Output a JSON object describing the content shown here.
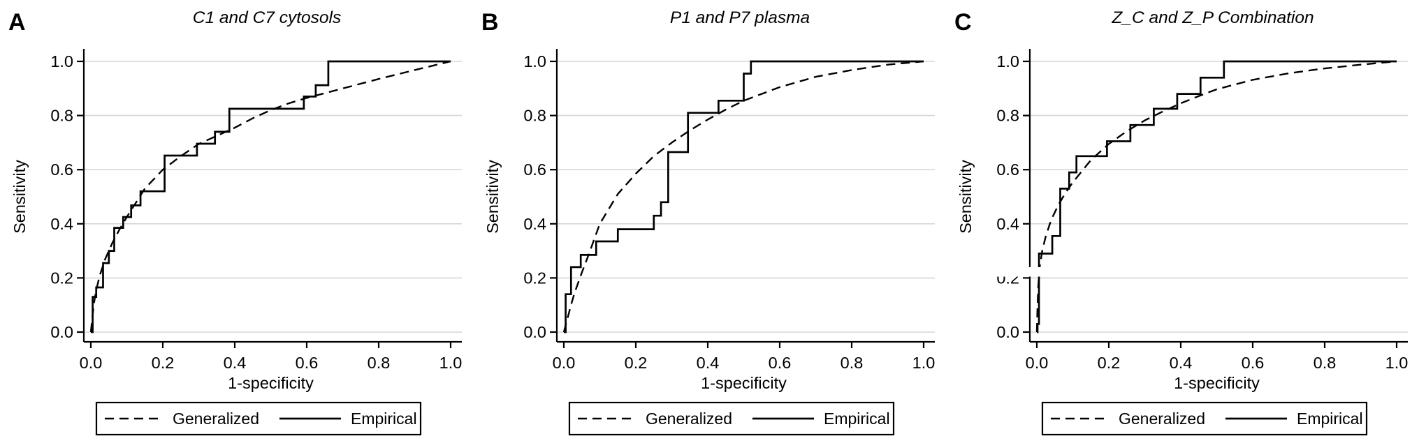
{
  "figure": {
    "background": "#ffffff",
    "line_color": "#000000",
    "grid_color": "#d6d6d6",
    "legend": {
      "entries": [
        {
          "label": "Generalized",
          "style": "dashed"
        },
        {
          "label": "Empirical",
          "style": "solid"
        }
      ],
      "position": "bottom"
    }
  },
  "chart_data": [
    {
      "type": "line",
      "panel_label": "A",
      "title": "C1 and C7 cytosols",
      "xlabel": "1-specificity",
      "ylabel": "Sensitivity",
      "xlim": [
        0,
        1
      ],
      "ylim": [
        0,
        1
      ],
      "xticks": [
        "0.0",
        "0.2",
        "0.4",
        "0.6",
        "0.8",
        "1.0"
      ],
      "yticks": [
        "0.0",
        "0.2",
        "0.4",
        "0.6",
        "0.8",
        "1.0"
      ],
      "grid": "horizontal",
      "series": [
        {
          "name": "Generalized",
          "style": "dashed",
          "x": [
            0,
            0.004,
            0.008,
            0.015,
            0.025,
            0.04,
            0.06,
            0.08,
            0.1,
            0.15,
            0.2,
            0.25,
            0.3,
            0.35,
            0.4,
            0.45,
            0.5,
            0.55,
            0.6,
            0.7,
            0.8,
            0.9,
            1.0
          ],
          "y": [
            0,
            0.05,
            0.1,
            0.155,
            0.21,
            0.27,
            0.33,
            0.38,
            0.425,
            0.53,
            0.6,
            0.65,
            0.695,
            0.725,
            0.755,
            0.79,
            0.82,
            0.845,
            0.865,
            0.9,
            0.935,
            0.968,
            1.0
          ]
        },
        {
          "name": "Empirical",
          "style": "solid-step",
          "steps": [
            [
              0.005,
              0.13
            ],
            [
              0.015,
              0.165
            ],
            [
              0.034,
              0.255
            ],
            [
              0.05,
              0.3
            ],
            [
              0.065,
              0.385
            ],
            [
              0.09,
              0.425
            ],
            [
              0.112,
              0.468
            ],
            [
              0.138,
              0.52
            ],
            [
              0.205,
              0.652
            ],
            [
              0.295,
              0.696
            ],
            [
              0.345,
              0.74
            ],
            [
              0.385,
              0.825
            ],
            [
              0.592,
              0.87
            ],
            [
              0.625,
              0.912
            ],
            [
              0.66,
              1.0
            ]
          ]
        }
      ]
    },
    {
      "type": "line",
      "panel_label": "B",
      "title": "P1 and P7 plasma",
      "xlabel": "1-specificity",
      "ylabel": "Sensitivity",
      "xlim": [
        0,
        1
      ],
      "ylim": [
        0,
        1
      ],
      "xticks": [
        "0.0",
        "0.2",
        "0.4",
        "0.6",
        "0.8",
        "1.0"
      ],
      "yticks": [
        "0.0",
        "0.2",
        "0.4",
        "0.6",
        "0.8",
        "1.0"
      ],
      "grid": "horizontal",
      "series": [
        {
          "name": "Generalized",
          "style": "dashed",
          "x": [
            0,
            0.005,
            0.01,
            0.02,
            0.03,
            0.05,
            0.07,
            0.1,
            0.15,
            0.2,
            0.25,
            0.3,
            0.35,
            0.4,
            0.45,
            0.5,
            0.6,
            0.7,
            0.8,
            0.9,
            1.0
          ],
          "y": [
            0,
            0.025,
            0.05,
            0.1,
            0.145,
            0.22,
            0.29,
            0.4,
            0.51,
            0.585,
            0.65,
            0.7,
            0.745,
            0.785,
            0.822,
            0.855,
            0.905,
            0.943,
            0.968,
            0.988,
            1.0
          ]
        },
        {
          "name": "Empirical",
          "style": "solid-step",
          "steps": [
            [
              0.005,
              0.14
            ],
            [
              0.02,
              0.24
            ],
            [
              0.047,
              0.285
            ],
            [
              0.09,
              0.335
            ],
            [
              0.15,
              0.38
            ],
            [
              0.25,
              0.43
            ],
            [
              0.27,
              0.48
            ],
            [
              0.29,
              0.665
            ],
            [
              0.345,
              0.81
            ],
            [
              0.43,
              0.855
            ],
            [
              0.5,
              0.955
            ],
            [
              0.52,
              1.0
            ]
          ]
        }
      ]
    },
    {
      "type": "line",
      "panel_label": "C",
      "title": "Z_C and Z_P Combination",
      "xlabel": "1-specificity",
      "ylabel": "Sensitivity",
      "xlim": [
        0,
        1
      ],
      "ylim": [
        0,
        1
      ],
      "xticks": [
        "0.0",
        "0.2",
        "0.4",
        "0.6",
        "0.8",
        "1.0"
      ],
      "yticks": [
        "0.0",
        "0.2",
        "0.4",
        "0.6",
        "0.8",
        "1.0"
      ],
      "grid": "horizontal",
      "break_band": {
        "y_from": 0.205,
        "y_to": 0.24
      },
      "series": [
        {
          "name": "Generalized",
          "style": "dashed",
          "x": [
            0,
            0.002,
            0.004,
            0.008,
            0.015,
            0.025,
            0.04,
            0.06,
            0.08,
            0.1,
            0.15,
            0.2,
            0.25,
            0.3,
            0.35,
            0.4,
            0.45,
            0.5,
            0.6,
            0.7,
            0.8,
            0.9,
            1.0
          ],
          "y": [
            0,
            0.1,
            0.17,
            0.24,
            0.3,
            0.355,
            0.415,
            0.47,
            0.515,
            0.553,
            0.635,
            0.695,
            0.742,
            0.782,
            0.815,
            0.845,
            0.872,
            0.897,
            0.932,
            0.956,
            0.974,
            0.988,
            1.0
          ]
        },
        {
          "name": "Empirical",
          "style": "solid-step",
          "steps": [
            [
              0.002,
              0.03
            ],
            [
              0.006,
              0.29
            ],
            [
              0.043,
              0.355
            ],
            [
              0.065,
              0.53
            ],
            [
              0.09,
              0.59
            ],
            [
              0.11,
              0.65
            ],
            [
              0.195,
              0.705
            ],
            [
              0.26,
              0.765
            ],
            [
              0.325,
              0.825
            ],
            [
              0.39,
              0.88
            ],
            [
              0.455,
              0.94
            ],
            [
              0.52,
              1.0
            ]
          ]
        }
      ]
    }
  ]
}
